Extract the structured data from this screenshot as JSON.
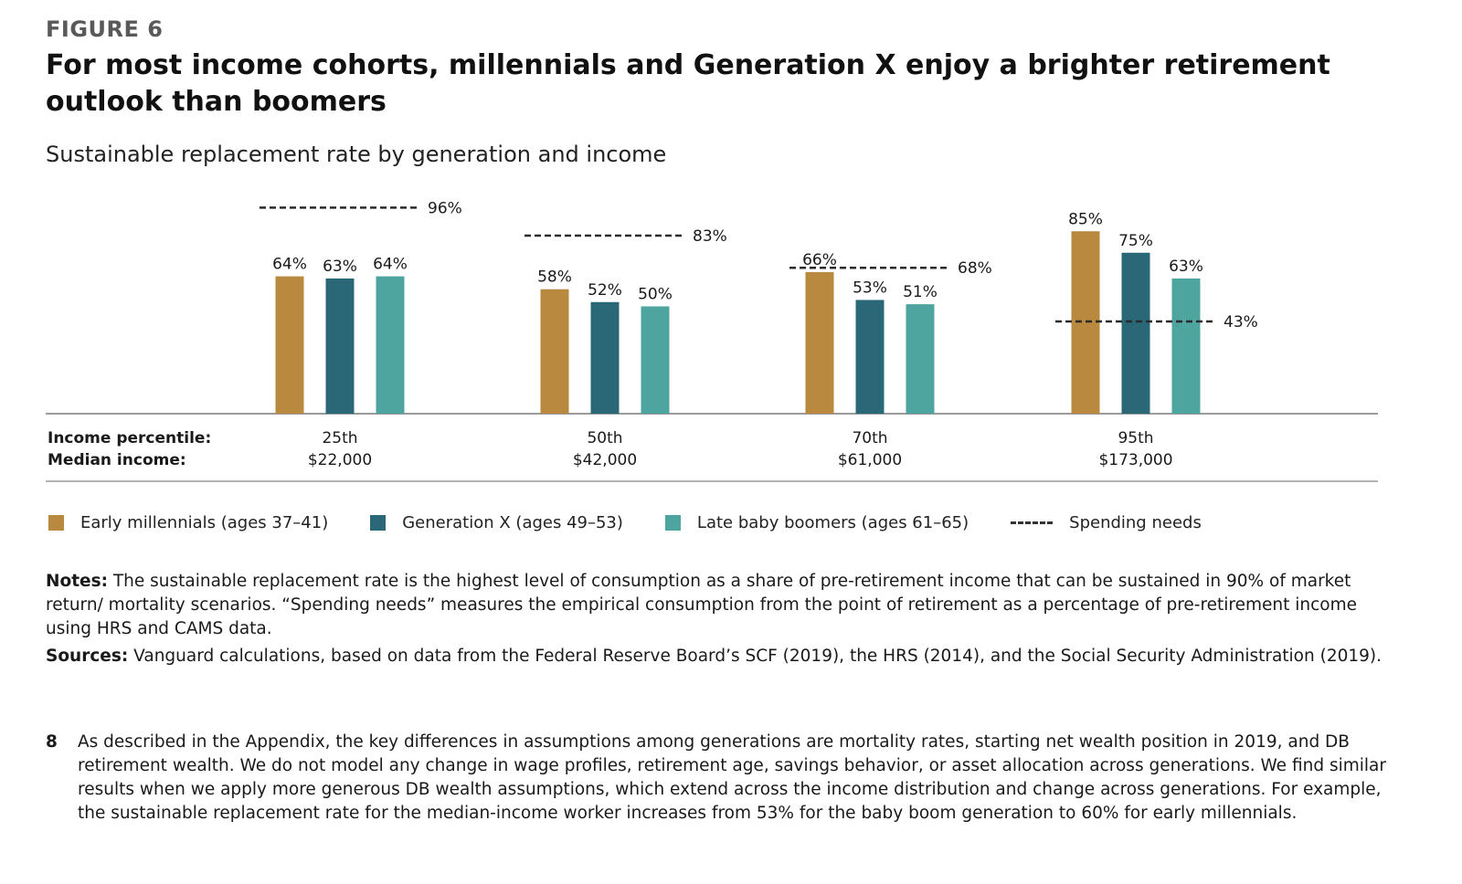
{
  "figure_label": "FIGURE 6",
  "title": "For most income cohorts, millennials and Generation X enjoy a brighter retirement outlook than boomers",
  "subtitle": "Sustainable replacement rate by generation and income",
  "chart_data": {
    "type": "bar",
    "row_labels": [
      "Income percentile:",
      "Median income:"
    ],
    "categories": [
      "25th",
      "50th",
      "70th",
      "95th"
    ],
    "median_incomes": [
      "$22,000",
      "$42,000",
      "$61,000",
      "$173,000"
    ],
    "series": [
      {
        "name": "Early millennials (ages 37–41)",
        "color": "#b8893e",
        "values": [
          64,
          58,
          66,
          85
        ],
        "labels": [
          "64%",
          "58%",
          "66%",
          "85%"
        ]
      },
      {
        "name": "Generation X (ages 49–53)",
        "color": "#2b6877",
        "values": [
          63,
          52,
          53,
          75
        ],
        "labels": [
          "63%",
          "52%",
          "53%",
          "75%"
        ]
      },
      {
        "name": "Late baby boomers (ages 61–65)",
        "color": "#4ea5a0",
        "values": [
          64,
          50,
          51,
          63
        ],
        "labels": [
          "64%",
          "50%",
          "51%",
          "63%"
        ]
      }
    ],
    "spending_needs": {
      "name": "Spending needs",
      "values": [
        96,
        83,
        68,
        43
      ],
      "labels": [
        "96%",
        "83%",
        "68%",
        "43%"
      ]
    },
    "ylim": [
      0,
      100
    ]
  },
  "legend": {
    "early_millennials": "Early millennials (ages 37–41)",
    "gen_x": "Generation X (ages 49–53)",
    "boomers": "Late baby boomers (ages 61–65)",
    "spending": "Spending needs"
  },
  "notes": {
    "notes_label": "Notes:",
    "notes_text": " The sustainable replacement rate is the highest level of consumption as a share of pre-retirement income that can be sustained in 90% of market return/ mortality scenarios. “Spending needs” measures the empirical consumption from the point of retirement as a percentage of pre-retirement income using HRS and CAMS data.",
    "sources_label": "Sources:",
    "sources_text": " Vanguard calculations, based on data from the Federal Reserve Board’s SCF (2019), the HRS (2014), and the Social Security Administration (2019)."
  },
  "footnote": {
    "number": "8",
    "text": "As described in the Appendix, the key differences in assumptions among generations are mortality rates, starting net wealth position in 2019, and DB retirement wealth. We do not model any change in wage profiles, retirement age, savings behavior, or asset allocation across generations. We find similar results when we apply more generous DB wealth assumptions, which extend across the income distribution and change across generations. For example, the sustainable replacement rate for the median-income worker increases from 53% for the baby boom generation to 60% for early millennials."
  }
}
